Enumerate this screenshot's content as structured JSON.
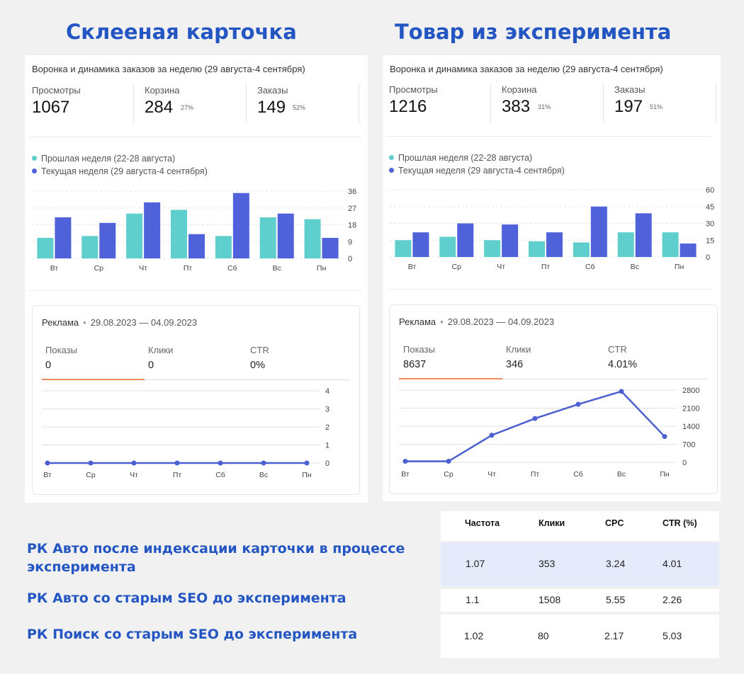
{
  "left": {
    "heading": "Склееная карточка",
    "panel_title": "Воронка и динамика заказов за неделю (29 августа-4 сентября)",
    "metrics": [
      {
        "label": "Просмотры",
        "value": "1067",
        "pct": ""
      },
      {
        "label": "Корзина",
        "value": "284",
        "pct": "27%"
      },
      {
        "label": "Заказы",
        "value": "149",
        "pct": "52%"
      }
    ],
    "legend": [
      "Прошлая неделя (22-28 августа)",
      "Текущая неделя (29 августа-4 сентября)"
    ],
    "ads": {
      "title": "Реклама",
      "dates": "29.08.2023 — 04.09.2023",
      "stats": [
        {
          "label": "Показы",
          "value": "0"
        },
        {
          "label": "Клики",
          "value": "0"
        },
        {
          "label": "CTR",
          "value": "0%"
        }
      ]
    }
  },
  "right": {
    "heading": "Товар из эксперимента",
    "panel_title": "Воронка и динамика заказов за неделю (29 августа-4 сентября)",
    "metrics": [
      {
        "label": "Просмотры",
        "value": "1216",
        "pct": ""
      },
      {
        "label": "Корзина",
        "value": "383",
        "pct": "31%"
      },
      {
        "label": "Заказы",
        "value": "197",
        "pct": "51%"
      }
    ],
    "legend": [
      "Прошлая неделя (22-28 августа)",
      "Текущая неделя (29 августа-4 сентября)"
    ],
    "ads": {
      "title": "Реклама",
      "dates": "29.08.2023 — 04.09.2023",
      "stats": [
        {
          "label": "Показы",
          "value": "8637"
        },
        {
          "label": "Клики",
          "value": "346"
        },
        {
          "label": "CTR",
          "value": "4.01%"
        }
      ]
    }
  },
  "colors": {
    "prev_week": "#5ecfcc",
    "cur_week": "#4f62da",
    "ads_line": "#4a5fd0",
    "heading": "#2356c2",
    "highlight_row": "#e6ebfc"
  },
  "captions": [
    "РК Авто после индексации карточки в процессе эксперимента",
    "РК Авто со старым SEO до эксперимента",
    "РК Поиск со старым SEO до эксперимента"
  ],
  "table": {
    "headers": [
      "Частота",
      "Клики",
      "CPC",
      "CTR (%)"
    ],
    "rows": [
      [
        "1.07",
        "353",
        "3.24",
        "4.01"
      ],
      [
        "1.1",
        "1508",
        "5.55",
        "2.26"
      ],
      [
        "1.02",
        "80",
        "2.17",
        "5.03"
      ]
    ]
  },
  "chart_data": [
    {
      "type": "bar",
      "categories": [
        "Вт",
        "Ср",
        "Чт",
        "Пт",
        "Сб",
        "Вс",
        "Пн"
      ],
      "series": [
        {
          "name": "Прошлая неделя (22-28 августа)",
          "values": [
            11,
            12,
            24,
            26,
            12,
            22,
            21
          ]
        },
        {
          "name": "Текущая неделя (29 августа-4 сентября)",
          "values": [
            22,
            19,
            30,
            13,
            35,
            24,
            11
          ]
        }
      ],
      "yticks": [
        0,
        9,
        18,
        27,
        36
      ],
      "ylim": [
        0,
        36
      ]
    },
    {
      "type": "line",
      "categories": [
        "Вт",
        "Ср",
        "Чт",
        "Пт",
        "Сб",
        "Вс",
        "Пн"
      ],
      "series": [
        {
          "values": [
            0,
            0,
            0,
            0,
            0,
            0,
            0
          ]
        }
      ],
      "yticks": [
        0,
        1,
        2,
        3,
        4
      ],
      "ylim": [
        0,
        4
      ]
    },
    {
      "type": "bar",
      "categories": [
        "Вт",
        "Ср",
        "Чт",
        "Пт",
        "Сб",
        "Вс",
        "Пн"
      ],
      "series": [
        {
          "name": "Прошлая неделя (22-28 августа)",
          "values": [
            15,
            18,
            15,
            14,
            13,
            22,
            22
          ]
        },
        {
          "name": "Текущая неделя (29 августа-4 сентября)",
          "values": [
            22,
            30,
            29,
            22,
            45,
            39,
            12
          ]
        }
      ],
      "yticks": [
        0,
        15,
        30,
        45,
        60
      ],
      "ylim": [
        0,
        60
      ]
    },
    {
      "type": "line",
      "categories": [
        "Вт",
        "Ср",
        "Чт",
        "Пт",
        "Сб",
        "Вс",
        "Пн"
      ],
      "series": [
        {
          "values": [
            40,
            40,
            1050,
            1700,
            2250,
            2750,
            1000
          ]
        }
      ],
      "yticks": [
        0,
        700,
        1400,
        2100,
        2800
      ],
      "ylim": [
        0,
        2800
      ]
    }
  ]
}
